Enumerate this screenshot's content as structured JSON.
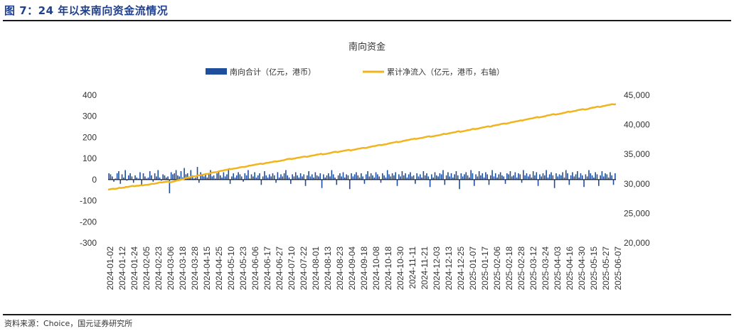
{
  "figure_title": "图 7：24 年以来南向资金流情况",
  "source_note": "资料来源：Choice，国元证券研究所",
  "colors": {
    "bar": "#1f4e9c",
    "line": "#f2b41c",
    "title": "#1f3f8f"
  },
  "chart_data": {
    "type": "bar+line",
    "title": "南向资金",
    "legend_position": "top",
    "grid": false,
    "series": [
      {
        "name": "南向合计（亿元，港币）",
        "type": "bar",
        "axis": "left"
      },
      {
        "name": "累计净流入（亿元，港币，右轴）",
        "type": "line",
        "axis": "right"
      }
    ],
    "left_axis": {
      "ylim": [
        -300,
        400
      ],
      "ticks": [
        "400",
        "300",
        "200",
        "100",
        "0",
        "-100",
        "-200",
        "-300"
      ]
    },
    "right_axis": {
      "ylim": [
        20000,
        45000
      ],
      "ticks": [
        "45,000",
        "40,000",
        "35,000",
        "30,000",
        "25,000",
        "20,000"
      ]
    },
    "x_range": [
      "2024-01-02",
      "2025-06-07"
    ],
    "x_tick_labels": [
      "2024-01-02",
      "2024-01-12",
      "2024-01-24",
      "2024-02-05",
      "2024-02-23",
      "2024-03-06",
      "2024-03-18",
      "2024-03-28",
      "2024-04-15",
      "2024-04-25",
      "2024-05-10",
      "2024-05-23",
      "2024-06-06",
      "2024-06-17",
      "2024-06-27",
      "2024-07-10",
      "2024-07-22",
      "2024-08-01",
      "2024-08-13",
      "2024-08-23",
      "2024-09-04",
      "2024-09-18",
      "2024-10-08",
      "2024-10-18",
      "2024-10-30",
      "2024-11-11",
      "2024-11-21",
      "2024-12-03",
      "2024-12-13",
      "2024-12-25",
      "2025-01-07",
      "2025-01-17",
      "2025-02-06",
      "2025-02-18",
      "2025-02-28",
      "2025-03-12",
      "2025-03-24",
      "2025-04-03",
      "2025-04-16",
      "2025-04-30",
      "2025-05-15",
      "2025-05-27",
      "2025-06-07"
    ],
    "bar_values": [
      30,
      25,
      15,
      -10,
      5,
      30,
      40,
      -20,
      25,
      10,
      45,
      -5,
      20,
      30,
      15,
      -15,
      20,
      10,
      5,
      35,
      -25,
      30,
      15,
      5,
      10,
      40,
      20,
      -10,
      30,
      15,
      45,
      10,
      -5,
      25,
      20,
      10,
      15,
      -65,
      35,
      25,
      30,
      45,
      20,
      15,
      40,
      10,
      55,
      25,
      30,
      15,
      45,
      20,
      5,
      10,
      60,
      -15,
      35,
      20,
      15,
      30,
      10,
      25,
      45,
      15,
      20,
      5,
      30,
      40,
      20,
      10,
      35,
      15,
      25,
      50,
      -20,
      15,
      30,
      10,
      20,
      35,
      25,
      15,
      -10,
      30,
      20,
      45,
      5,
      25,
      15,
      35,
      10,
      20,
      30,
      -25,
      15,
      40,
      20,
      10,
      25,
      15,
      30,
      20,
      -15,
      35,
      10,
      25,
      15,
      30,
      45,
      20,
      10,
      -20,
      25,
      15,
      35,
      20,
      10,
      30,
      15,
      25,
      -30,
      20,
      40,
      15,
      25,
      10,
      35,
      20,
      15,
      30,
      -40,
      25,
      10,
      20,
      30,
      15,
      45,
      25,
      10,
      -25,
      20,
      30,
      15,
      35,
      10,
      25,
      20,
      -45,
      30,
      15,
      25,
      35,
      20,
      10,
      30,
      15,
      -20,
      25,
      40,
      15,
      30,
      20,
      10,
      35,
      25,
      15,
      -15,
      30,
      20,
      10,
      45,
      25,
      15,
      30,
      20,
      35,
      -30,
      25,
      15,
      40,
      20,
      30,
      10,
      25,
      35,
      15,
      20,
      -20,
      30,
      15,
      25,
      10,
      40,
      20,
      30,
      15,
      -35,
      25,
      10,
      35,
      20,
      15,
      30,
      25,
      45,
      -25,
      20,
      35,
      15,
      30,
      10,
      25,
      40,
      20,
      -45,
      30,
      15,
      25,
      35,
      20,
      10,
      45,
      30,
      -30,
      25,
      15,
      40,
      20,
      30,
      10,
      35,
      25,
      -25,
      20,
      45,
      15,
      30,
      10,
      25,
      35,
      20,
      15,
      -20,
      30,
      25,
      40,
      15,
      20,
      35,
      10,
      30,
      25,
      -15,
      45,
      20,
      30,
      15,
      25,
      10,
      40,
      20,
      35,
      -30,
      25,
      15,
      30,
      20,
      45,
      10,
      25,
      35,
      20,
      -40,
      30,
      15,
      25,
      20,
      35,
      10,
      45,
      30,
      -25,
      20,
      35,
      15,
      25,
      40,
      10,
      30,
      20,
      -35,
      25,
      15,
      45,
      30,
      20,
      10,
      35,
      25,
      -30,
      20,
      40,
      15,
      30,
      25,
      10,
      35,
      20,
      -25,
      30
    ],
    "cumulative_start": 29000,
    "cumulative_end": 43500
  }
}
